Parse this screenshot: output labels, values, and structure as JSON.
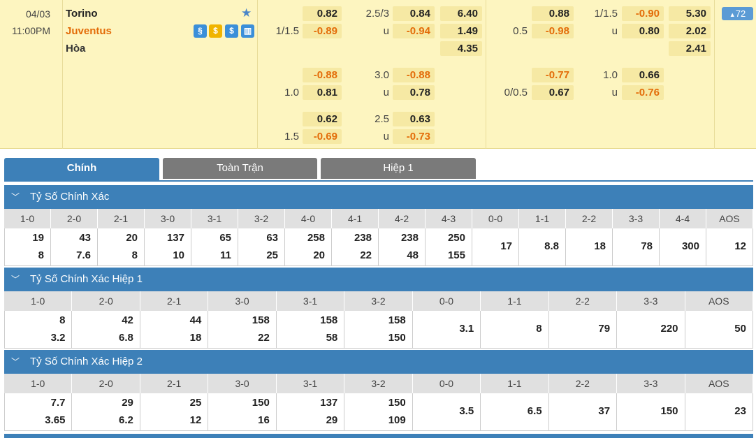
{
  "match": {
    "date": "04/03",
    "time": "11:00PM",
    "home": "Torino",
    "away": "Juventus",
    "draw": "Hòa",
    "badge": "72",
    "odds": {
      "r1": {
        "a": "0.82",
        "l1": "2.5/3",
        "b": "0.84",
        "c": "6.40",
        "d": "0.88",
        "l2": "1/1.5",
        "e": "-0.90",
        "f": "5.30"
      },
      "r2": {
        "l0": "1/1.5",
        "a": "-0.89",
        "l1": "u",
        "b": "-0.94",
        "c": "1.49",
        "l3": "0.5",
        "d": "-0.98",
        "l2": "u",
        "e": "0.80",
        "f": "2.02"
      },
      "r3": {
        "c": "4.35",
        "f": "2.41"
      },
      "r4": {
        "a": "-0.88",
        "l1": "3.0",
        "b": "-0.88",
        "d": "-0.77",
        "l2": "1.0",
        "e": "0.66"
      },
      "r5": {
        "l0": "1.0",
        "a": "0.81",
        "l1": "u",
        "b": "0.78",
        "l3": "0/0.5",
        "d": "0.67",
        "l2": "u",
        "e": "-0.76"
      },
      "r6": {
        "a": "0.62",
        "l1": "2.5",
        "b": "0.63"
      },
      "r7": {
        "l0": "1.5",
        "a": "-0.69",
        "l1": "u",
        "b": "-0.73"
      }
    }
  },
  "tabs": [
    "Chính",
    "Toàn Trận",
    "Hiệp 1"
  ],
  "sections": [
    {
      "title": "Tỷ Số Chính Xác",
      "headers": [
        "1-0",
        "2-0",
        "2-1",
        "3-0",
        "3-1",
        "3-2",
        "4-0",
        "4-1",
        "4-2",
        "4-3",
        "0-0",
        "1-1",
        "2-2",
        "3-3",
        "4-4",
        "AOS"
      ],
      "values": [
        [
          "19",
          "8"
        ],
        [
          "43",
          "7.6"
        ],
        [
          "20",
          "8"
        ],
        [
          "137",
          "10"
        ],
        [
          "65",
          "11"
        ],
        [
          "63",
          "25"
        ],
        [
          "258",
          "20"
        ],
        [
          "238",
          "22"
        ],
        [
          "238",
          "48"
        ],
        [
          "250",
          "155"
        ],
        [
          "17"
        ],
        [
          "8.8"
        ],
        [
          "18"
        ],
        [
          "78"
        ],
        [
          "300"
        ],
        [
          "12"
        ]
      ]
    },
    {
      "title": "Tỷ Số Chính Xác Hiệp 1",
      "headers": [
        "1-0",
        "2-0",
        "2-1",
        "3-0",
        "3-1",
        "3-2",
        "0-0",
        "1-1",
        "2-2",
        "3-3",
        "AOS"
      ],
      "values": [
        [
          "8",
          "3.2"
        ],
        [
          "42",
          "6.8"
        ],
        [
          "44",
          "18"
        ],
        [
          "158",
          "22"
        ],
        [
          "158",
          "58"
        ],
        [
          "158",
          "150"
        ],
        [
          "3.1"
        ],
        [
          "8"
        ],
        [
          "79"
        ],
        [
          "220"
        ],
        [
          "50"
        ]
      ]
    },
    {
      "title": "Tỷ Số Chính Xác Hiệp 2",
      "headers": [
        "1-0",
        "2-0",
        "2-1",
        "3-0",
        "3-1",
        "3-2",
        "0-0",
        "1-1",
        "2-2",
        "3-3",
        "AOS"
      ],
      "values": [
        [
          "7.7",
          "3.65"
        ],
        [
          "29",
          "6.2"
        ],
        [
          "25",
          "12"
        ],
        [
          "150",
          "16"
        ],
        [
          "137",
          "29"
        ],
        [
          "150",
          "109"
        ],
        [
          "3.5"
        ],
        [
          "6.5"
        ],
        [
          "37"
        ],
        [
          "150"
        ],
        [
          "23"
        ]
      ]
    }
  ],
  "colors": {
    "accent": "#3d80b8",
    "panel": "#fdf5c0",
    "negative": "#e36c09"
  }
}
